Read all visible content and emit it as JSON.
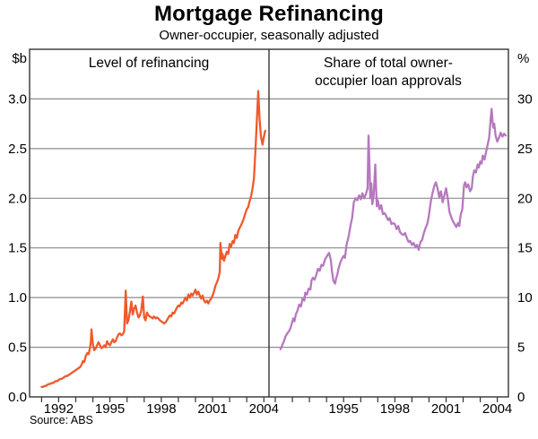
{
  "title": "Mortgage Refinancing",
  "subtitle": "Owner-occupier, seasonally adjusted",
  "source": "Source: ABS",
  "left_unit": "$b",
  "right_unit": "%",
  "colors": {
    "left_line": "#f0592b",
    "right_line": "#b678be",
    "gridline": "#8c8c8c",
    "frame": "#333333",
    "text": "#000000"
  },
  "chart_data": [
    {
      "type": "line",
      "panel": "left",
      "title": "Level of refinancing",
      "ylabel": "$b",
      "ylim": [
        0,
        3.5
      ],
      "xlim": [
        1990.3,
        2004.3
      ],
      "grid": "on",
      "grid_values": [
        0.5,
        1.0,
        1.5,
        2.0,
        2.5,
        3.0
      ],
      "ytick_values": [
        0,
        0.5,
        1.0,
        1.5,
        2.0,
        2.5,
        3.0
      ],
      "ytick_labels": [
        "0.0",
        "0.5",
        "1.0",
        "1.5",
        "2.0",
        "2.5",
        "3.0"
      ],
      "xtick_label_years": [
        1992,
        1995,
        1998,
        2001,
        2004
      ],
      "color": "#f0592b",
      "points": [
        [
          1991.0,
          0.1
        ],
        [
          1991.08,
          0.1
        ],
        [
          1991.17,
          0.11
        ],
        [
          1991.25,
          0.11
        ],
        [
          1991.33,
          0.12
        ],
        [
          1991.42,
          0.13
        ],
        [
          1991.5,
          0.13
        ],
        [
          1991.58,
          0.14
        ],
        [
          1991.67,
          0.14
        ],
        [
          1991.75,
          0.15
        ],
        [
          1991.83,
          0.16
        ],
        [
          1991.92,
          0.16
        ],
        [
          1992.0,
          0.17
        ],
        [
          1992.08,
          0.18
        ],
        [
          1992.17,
          0.18
        ],
        [
          1992.25,
          0.19
        ],
        [
          1992.33,
          0.2
        ],
        [
          1992.42,
          0.21
        ],
        [
          1992.5,
          0.21
        ],
        [
          1992.58,
          0.22
        ],
        [
          1992.67,
          0.23
        ],
        [
          1992.75,
          0.24
        ],
        [
          1992.83,
          0.25
        ],
        [
          1992.92,
          0.26
        ],
        [
          1993.0,
          0.27
        ],
        [
          1993.08,
          0.28
        ],
        [
          1993.17,
          0.29
        ],
        [
          1993.25,
          0.3
        ],
        [
          1993.33,
          0.32
        ],
        [
          1993.42,
          0.36
        ],
        [
          1993.5,
          0.35
        ],
        [
          1993.58,
          0.41
        ],
        [
          1993.67,
          0.44
        ],
        [
          1993.75,
          0.43
        ],
        [
          1993.83,
          0.49
        ],
        [
          1993.88,
          0.55
        ],
        [
          1993.92,
          0.68
        ],
        [
          1994.0,
          0.53
        ],
        [
          1994.08,
          0.47
        ],
        [
          1994.17,
          0.49
        ],
        [
          1994.25,
          0.52
        ],
        [
          1994.33,
          0.55
        ],
        [
          1994.42,
          0.52
        ],
        [
          1994.5,
          0.49
        ],
        [
          1994.58,
          0.5
        ],
        [
          1994.67,
          0.52
        ],
        [
          1994.75,
          0.5
        ],
        [
          1994.83,
          0.56
        ],
        [
          1994.92,
          0.53
        ],
        [
          1995.0,
          0.52
        ],
        [
          1995.08,
          0.55
        ],
        [
          1995.17,
          0.58
        ],
        [
          1995.25,
          0.55
        ],
        [
          1995.33,
          0.56
        ],
        [
          1995.42,
          0.6
        ],
        [
          1995.5,
          0.63
        ],
        [
          1995.58,
          0.64
        ],
        [
          1995.67,
          0.62
        ],
        [
          1995.75,
          0.63
        ],
        [
          1995.83,
          0.66
        ],
        [
          1995.92,
          1.07
        ],
        [
          1996.0,
          0.74
        ],
        [
          1996.08,
          0.77
        ],
        [
          1996.17,
          0.86
        ],
        [
          1996.25,
          0.96
        ],
        [
          1996.33,
          0.83
        ],
        [
          1996.42,
          0.89
        ],
        [
          1996.5,
          0.92
        ],
        [
          1996.58,
          0.85
        ],
        [
          1996.67,
          0.8
        ],
        [
          1996.75,
          0.82
        ],
        [
          1996.83,
          0.87
        ],
        [
          1996.92,
          1.01
        ],
        [
          1997.0,
          0.8
        ],
        [
          1997.08,
          0.77
        ],
        [
          1997.17,
          0.85
        ],
        [
          1997.25,
          0.82
        ],
        [
          1997.33,
          0.81
        ],
        [
          1997.42,
          0.8
        ],
        [
          1997.5,
          0.79
        ],
        [
          1997.58,
          0.81
        ],
        [
          1997.67,
          0.79
        ],
        [
          1997.75,
          0.8
        ],
        [
          1997.83,
          0.79
        ],
        [
          1997.92,
          0.77
        ],
        [
          1998.0,
          0.76
        ],
        [
          1998.08,
          0.75
        ],
        [
          1998.17,
          0.74
        ],
        [
          1998.25,
          0.75
        ],
        [
          1998.33,
          0.77
        ],
        [
          1998.42,
          0.8
        ],
        [
          1998.5,
          0.82
        ],
        [
          1998.58,
          0.81
        ],
        [
          1998.67,
          0.85
        ],
        [
          1998.75,
          0.84
        ],
        [
          1998.83,
          0.87
        ],
        [
          1998.92,
          0.9
        ],
        [
          1999.0,
          0.92
        ],
        [
          1999.08,
          0.91
        ],
        [
          1999.17,
          0.95
        ],
        [
          1999.25,
          0.94
        ],
        [
          1999.33,
          0.97
        ],
        [
          1999.42,
          1.0
        ],
        [
          1999.5,
          0.97
        ],
        [
          1999.58,
          1.03
        ],
        [
          1999.67,
          1.0
        ],
        [
          1999.75,
          1.04
        ],
        [
          1999.83,
          1.02
        ],
        [
          1999.92,
          1.05
        ],
        [
          2000.0,
          1.08
        ],
        [
          2000.08,
          1.03
        ],
        [
          2000.17,
          1.06
        ],
        [
          2000.25,
          1.02
        ],
        [
          2000.33,
          0.99
        ],
        [
          2000.42,
          1.02
        ],
        [
          2000.5,
          0.97
        ],
        [
          2000.58,
          0.95
        ],
        [
          2000.67,
          0.97
        ],
        [
          2000.75,
          0.94
        ],
        [
          2000.83,
          0.97
        ],
        [
          2000.92,
          0.99
        ],
        [
          2001.0,
          1.02
        ],
        [
          2001.08,
          1.06
        ],
        [
          2001.17,
          1.12
        ],
        [
          2001.25,
          1.15
        ],
        [
          2001.33,
          1.19
        ],
        [
          2001.42,
          1.26
        ],
        [
          2001.46,
          1.55
        ],
        [
          2001.54,
          1.39
        ],
        [
          2001.58,
          1.44
        ],
        [
          2001.67,
          1.37
        ],
        [
          2001.75,
          1.42
        ],
        [
          2001.83,
          1.46
        ],
        [
          2001.92,
          1.44
        ],
        [
          2002.0,
          1.54
        ],
        [
          2002.08,
          1.51
        ],
        [
          2002.17,
          1.57
        ],
        [
          2002.25,
          1.55
        ],
        [
          2002.33,
          1.63
        ],
        [
          2002.42,
          1.6
        ],
        [
          2002.5,
          1.67
        ],
        [
          2002.58,
          1.7
        ],
        [
          2002.67,
          1.73
        ],
        [
          2002.75,
          1.76
        ],
        [
          2002.83,
          1.8
        ],
        [
          2002.92,
          1.85
        ],
        [
          2003.0,
          1.89
        ],
        [
          2003.08,
          1.91
        ],
        [
          2003.17,
          1.97
        ],
        [
          2003.25,
          2.02
        ],
        [
          2003.33,
          2.09
        ],
        [
          2003.42,
          2.2
        ],
        [
          2003.5,
          2.45
        ],
        [
          2003.58,
          2.75
        ],
        [
          2003.67,
          3.08
        ],
        [
          2003.75,
          2.8
        ],
        [
          2003.83,
          2.62
        ],
        [
          2003.92,
          2.54
        ],
        [
          2004.0,
          2.62
        ],
        [
          2004.08,
          2.68
        ]
      ]
    },
    {
      "type": "line",
      "panel": "right",
      "title": "Share of total owner-occupier loan approvals",
      "title_lines": [
        "Share of total owner-",
        "occupier loan approvals"
      ],
      "ylabel": "%",
      "ylim": [
        0,
        35
      ],
      "xlim": [
        1990.63,
        2004.65
      ],
      "grid": "on",
      "grid_values": [
        5,
        10,
        15,
        20,
        25,
        30
      ],
      "ytick_values": [
        0,
        5,
        10,
        15,
        20,
        25,
        30
      ],
      "ytick_labels": [
        "0",
        "5",
        "10",
        "15",
        "20",
        "25",
        "30"
      ],
      "xtick_label_years": [
        1995,
        1998,
        2001,
        2004
      ],
      "color": "#b678be",
      "points": [
        [
          1991.3,
          4.8
        ],
        [
          1991.4,
          5.2
        ],
        [
          1991.5,
          5.6
        ],
        [
          1991.6,
          6.1
        ],
        [
          1991.7,
          6.4
        ],
        [
          1991.8,
          6.6
        ],
        [
          1991.9,
          7.0
        ],
        [
          1992.0,
          7.6
        ],
        [
          1992.05,
          7.9
        ],
        [
          1992.12,
          7.6
        ],
        [
          1992.2,
          8.3
        ],
        [
          1992.3,
          8.7
        ],
        [
          1992.4,
          9.3
        ],
        [
          1992.5,
          9.1
        ],
        [
          1992.6,
          9.9
        ],
        [
          1992.7,
          9.7
        ],
        [
          1992.75,
          10.5
        ],
        [
          1992.85,
          10.3
        ],
        [
          1992.95,
          10.9
        ],
        [
          1993.05,
          10.8
        ],
        [
          1993.12,
          11.7
        ],
        [
          1993.2,
          12.0
        ],
        [
          1993.3,
          11.8
        ],
        [
          1993.4,
          12.3
        ],
        [
          1993.5,
          12.9
        ],
        [
          1993.6,
          12.7
        ],
        [
          1993.7,
          13.3
        ],
        [
          1993.8,
          13.2
        ],
        [
          1993.9,
          13.8
        ],
        [
          1994.0,
          14.1
        ],
        [
          1994.1,
          14.4
        ],
        [
          1994.15,
          14.5
        ],
        [
          1994.25,
          13.8
        ],
        [
          1994.32,
          12.6
        ],
        [
          1994.4,
          11.7
        ],
        [
          1994.5,
          11.4
        ],
        [
          1994.57,
          12.0
        ],
        [
          1994.63,
          12.3
        ],
        [
          1994.7,
          12.9
        ],
        [
          1994.8,
          13.5
        ],
        [
          1994.9,
          13.9
        ],
        [
          1995.0,
          14.2
        ],
        [
          1995.08,
          14.0
        ],
        [
          1995.17,
          15.3
        ],
        [
          1995.3,
          16.2
        ],
        [
          1995.42,
          17.4
        ],
        [
          1995.5,
          18.0
        ],
        [
          1995.6,
          19.6
        ],
        [
          1995.7,
          20.0
        ],
        [
          1995.8,
          19.8
        ],
        [
          1995.9,
          20.3
        ],
        [
          1996.0,
          19.9
        ],
        [
          1996.1,
          20.5
        ],
        [
          1996.2,
          20.0
        ],
        [
          1996.3,
          20.4
        ],
        [
          1996.4,
          21.0
        ],
        [
          1996.46,
          26.3
        ],
        [
          1996.52,
          23.0
        ],
        [
          1996.56,
          20.0
        ],
        [
          1996.62,
          21.5
        ],
        [
          1996.68,
          19.4
        ],
        [
          1996.76,
          20.2
        ],
        [
          1996.85,
          23.4
        ],
        [
          1996.94,
          19.2
        ],
        [
          1997.0,
          19.8
        ],
        [
          1997.1,
          18.9
        ],
        [
          1997.2,
          19.3
        ],
        [
          1997.3,
          18.4
        ],
        [
          1997.4,
          18.5
        ],
        [
          1997.5,
          18.2
        ],
        [
          1997.6,
          17.8
        ],
        [
          1997.7,
          18.0
        ],
        [
          1997.8,
          17.4
        ],
        [
          1997.9,
          17.5
        ],
        [
          1998.0,
          17.4
        ],
        [
          1998.1,
          16.9
        ],
        [
          1998.2,
          17.2
        ],
        [
          1998.3,
          16.6
        ],
        [
          1998.4,
          16.4
        ],
        [
          1998.5,
          16.3
        ],
        [
          1998.6,
          16.5
        ],
        [
          1998.7,
          16.0
        ],
        [
          1998.8,
          15.6
        ],
        [
          1998.9,
          15.7
        ],
        [
          1999.0,
          15.3
        ],
        [
          1999.1,
          15.5
        ],
        [
          1999.2,
          15.1
        ],
        [
          1999.3,
          15.3
        ],
        [
          1999.4,
          14.8
        ],
        [
          1999.5,
          15.6
        ],
        [
          1999.6,
          15.8
        ],
        [
          1999.7,
          16.5
        ],
        [
          1999.8,
          17.0
        ],
        [
          1999.9,
          17.4
        ],
        [
          2000.0,
          18.3
        ],
        [
          2000.1,
          19.6
        ],
        [
          2000.2,
          20.5
        ],
        [
          2000.3,
          21.2
        ],
        [
          2000.4,
          21.6
        ],
        [
          2000.5,
          21.0
        ],
        [
          2000.6,
          20.1
        ],
        [
          2000.7,
          20.7
        ],
        [
          2000.8,
          19.6
        ],
        [
          2000.9,
          20.3
        ],
        [
          2001.0,
          21.0
        ],
        [
          2001.1,
          20.0
        ],
        [
          2001.2,
          18.6
        ],
        [
          2001.3,
          18.1
        ],
        [
          2001.4,
          17.7
        ],
        [
          2001.5,
          17.4
        ],
        [
          2001.6,
          17.1
        ],
        [
          2001.7,
          17.5
        ],
        [
          2001.77,
          17.2
        ],
        [
          2001.85,
          18.3
        ],
        [
          2001.95,
          18.9
        ],
        [
          2002.05,
          21.3
        ],
        [
          2002.12,
          21.6
        ],
        [
          2002.2,
          21.1
        ],
        [
          2002.3,
          21.4
        ],
        [
          2002.4,
          20.7
        ],
        [
          2002.5,
          21.0
        ],
        [
          2002.57,
          22.2
        ],
        [
          2002.65,
          22.8
        ],
        [
          2002.75,
          22.6
        ],
        [
          2002.85,
          23.4
        ],
        [
          2002.92,
          23.1
        ],
        [
          2003.0,
          23.7
        ],
        [
          2003.08,
          23.5
        ],
        [
          2003.15,
          24.3
        ],
        [
          2003.25,
          23.9
        ],
        [
          2003.35,
          24.7
        ],
        [
          2003.45,
          25.5
        ],
        [
          2003.52,
          26.1
        ],
        [
          2003.58,
          27.3
        ],
        [
          2003.62,
          28.2
        ],
        [
          2003.67,
          29.0
        ],
        [
          2003.72,
          27.7
        ],
        [
          2003.77,
          27.1
        ],
        [
          2003.82,
          27.5
        ],
        [
          2003.9,
          26.3
        ],
        [
          2004.0,
          25.7
        ],
        [
          2004.1,
          26.1
        ],
        [
          2004.2,
          26.6
        ],
        [
          2004.3,
          26.2
        ],
        [
          2004.4,
          26.5
        ],
        [
          2004.5,
          26.3
        ]
      ]
    }
  ]
}
